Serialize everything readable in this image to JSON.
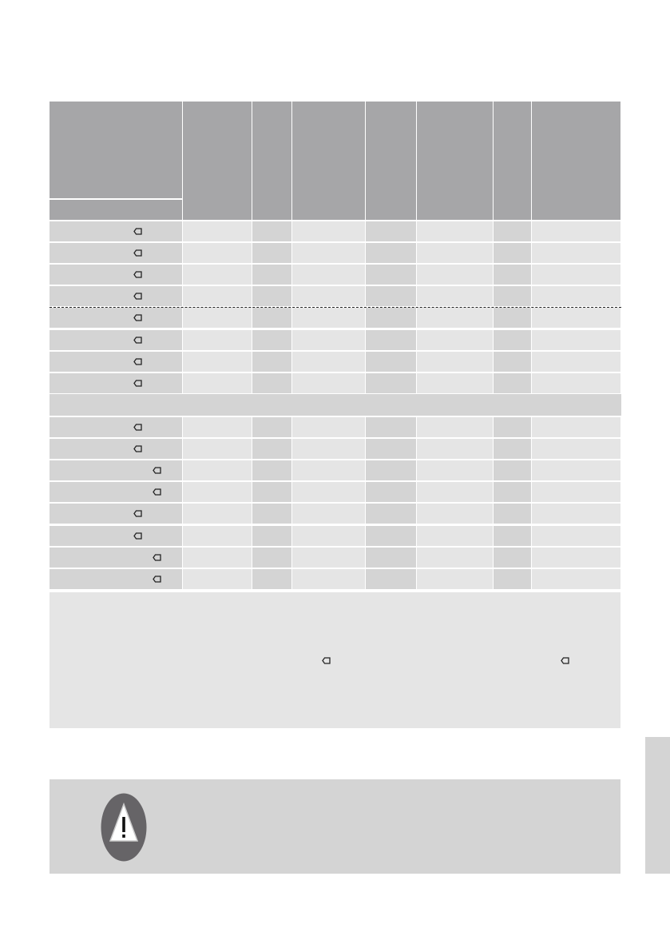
{
  "colors": {
    "header": "#a6a6a8",
    "cell_dark": "#d4d4d4",
    "cell_light": "#e5e5e5",
    "warning_circle": "#666467",
    "side_tab": "#d4d4d4"
  },
  "icons": {
    "row_marker": "tag-icon",
    "warning": "warning-triangle-icon"
  }
}
